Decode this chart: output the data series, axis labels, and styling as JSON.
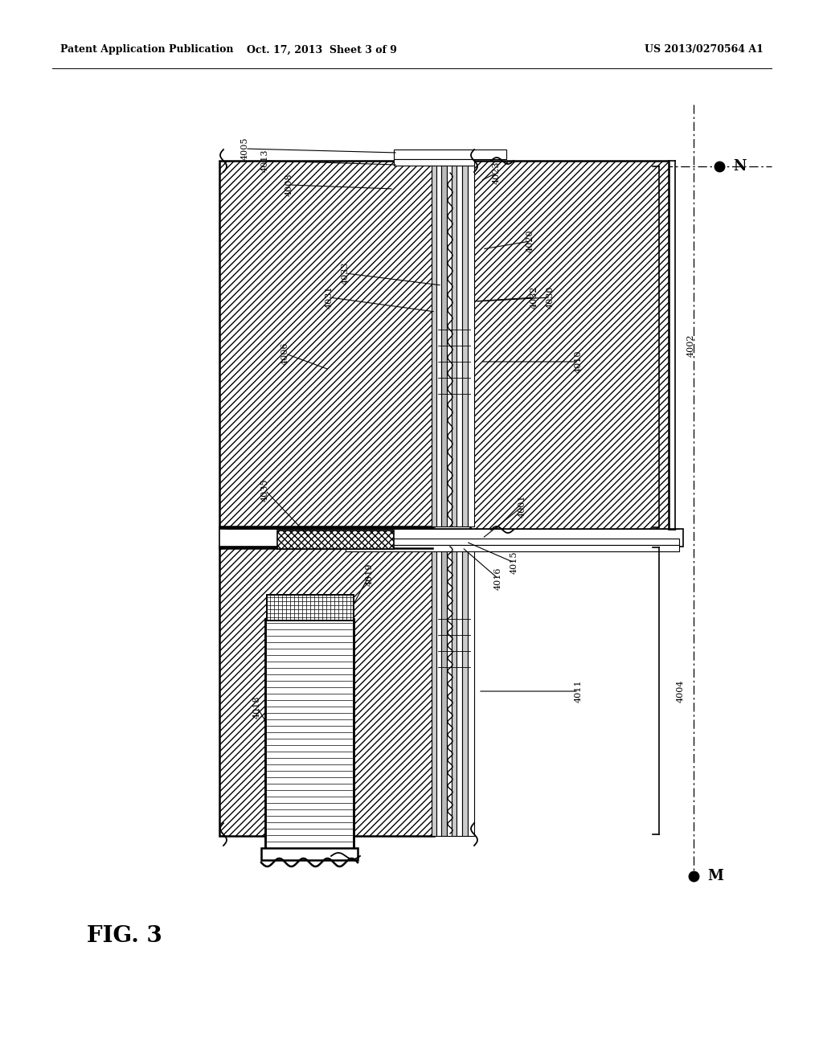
{
  "header_left": "Patent Application Publication",
  "header_center": "Oct. 17, 2013  Sheet 3 of 9",
  "header_right": "US 2013/0270564 A1",
  "bg": "#ffffff",
  "lc": "#000000"
}
